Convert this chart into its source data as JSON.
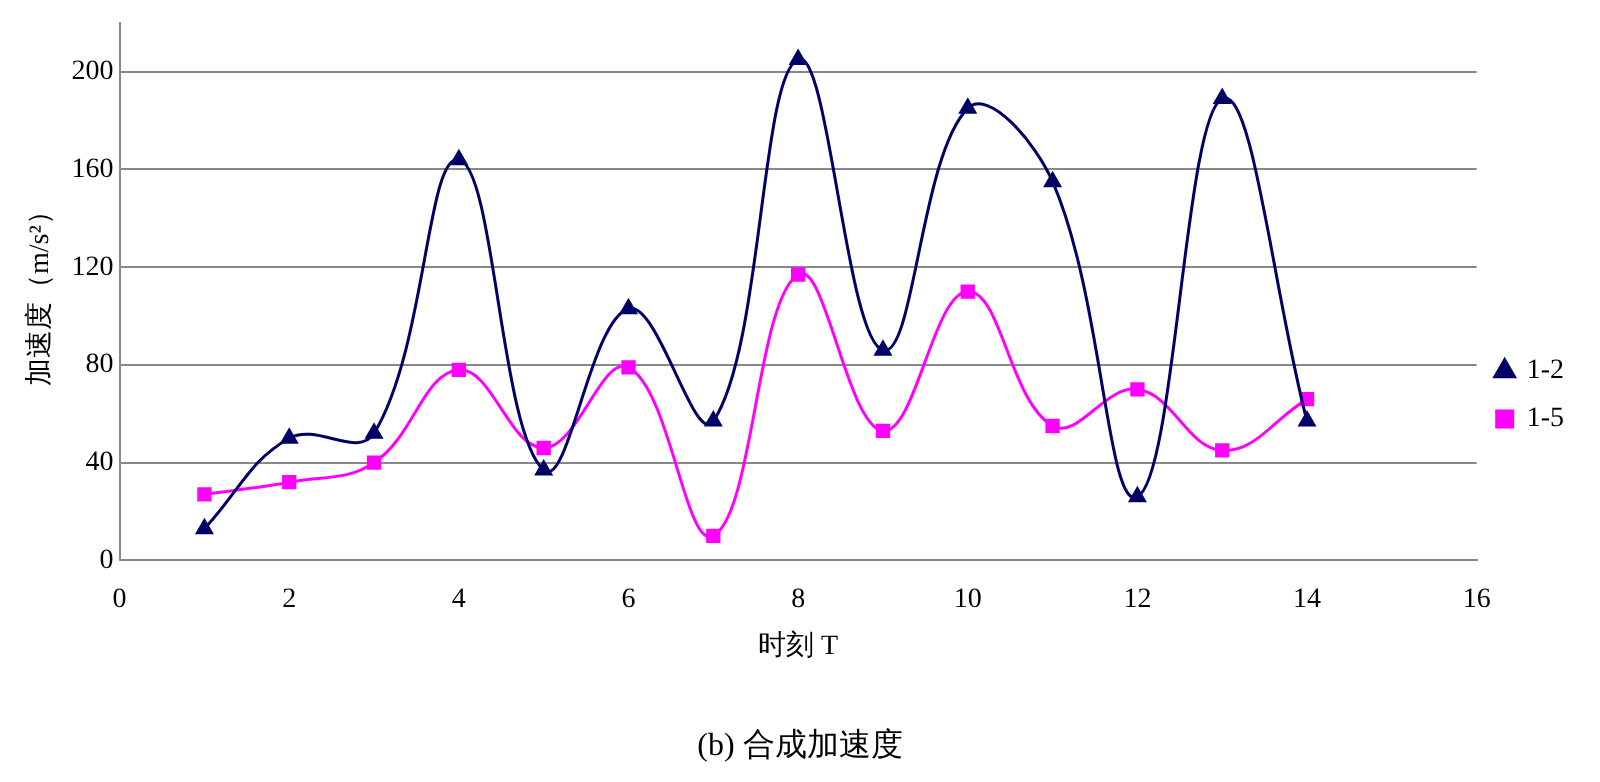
{
  "chart_data": {
    "type": "line",
    "title": "(b) 合成加速度",
    "xlabel": "时刻 T",
    "ylabel": "加速度（m/s²）",
    "x": [
      1,
      2,
      3,
      4,
      5,
      6,
      7,
      8,
      9,
      10,
      11,
      12,
      13,
      14
    ],
    "series": [
      {
        "name": "1-2",
        "color": "#000066",
        "marker": "triangle",
        "values": [
          13,
          50,
          52,
          164,
          37,
          103,
          57,
          205,
          86,
          185,
          155,
          26,
          189,
          57
        ]
      },
      {
        "name": "1-5",
        "color": "#ff00ff",
        "marker": "square",
        "values": [
          27,
          32,
          40,
          78,
          46,
          79,
          10,
          117,
          53,
          110,
          55,
          70,
          45,
          66
        ]
      }
    ],
    "xlim": [
      0,
      16
    ],
    "xticks": [
      0,
      2,
      4,
      6,
      8,
      10,
      12,
      14,
      16
    ],
    "ylim": [
      0,
      220
    ],
    "yticks": [
      0,
      40,
      80,
      120,
      160,
      200
    ],
    "grid": "y",
    "legend": "right"
  }
}
